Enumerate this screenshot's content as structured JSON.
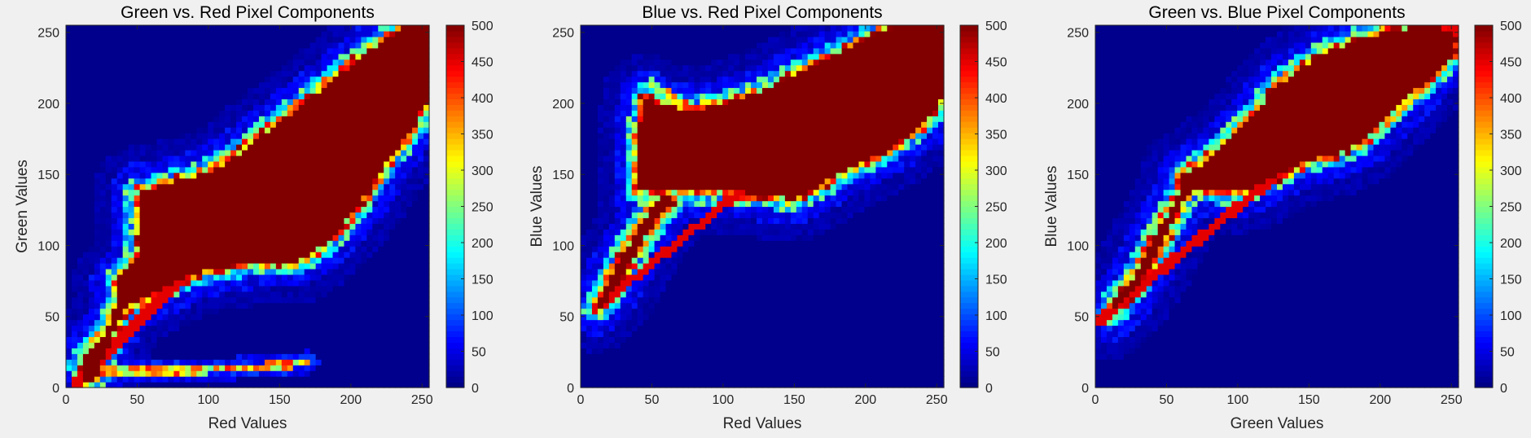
{
  "figure": {
    "colormap": "jet",
    "background": "#f0f0f0"
  },
  "chart_data": [
    {
      "type": "heatmap",
      "title": "Green vs. Red Pixel Components",
      "xlabel": "Red Values",
      "ylabel": "Green Values",
      "xlim": [
        0,
        255
      ],
      "ylim": [
        0,
        255
      ],
      "xticks": [
        0,
        50,
        100,
        150,
        200,
        250
      ],
      "yticks": [
        0,
        50,
        100,
        150,
        200,
        250
      ],
      "clim": [
        0,
        500
      ],
      "colorbar_ticks": [
        0,
        50,
        100,
        150,
        200,
        250,
        300,
        350,
        400,
        450,
        500
      ],
      "bins": 64,
      "saturated_region_polygon": [
        [
          35,
          75
        ],
        [
          45,
          85
        ],
        [
          50,
          90
        ],
        [
          50,
          140
        ],
        [
          60,
          140
        ],
        [
          75,
          145
        ],
        [
          95,
          150
        ],
        [
          115,
          160
        ],
        [
          140,
          180
        ],
        [
          160,
          195
        ],
        [
          185,
          215
        ],
        [
          210,
          235
        ],
        [
          225,
          245
        ],
        [
          240,
          255
        ],
        [
          255,
          255
        ],
        [
          255,
          210
        ],
        [
          245,
          185
        ],
        [
          230,
          165
        ],
        [
          210,
          135
        ],
        [
          195,
          115
        ],
        [
          180,
          100
        ],
        [
          165,
          90
        ],
        [
          150,
          88
        ],
        [
          130,
          88
        ],
        [
          110,
          85
        ],
        [
          90,
          80
        ],
        [
          70,
          70
        ],
        [
          50,
          60
        ],
        [
          40,
          55
        ]
      ],
      "saturated_band_polygon": [
        [
          15,
          0
        ],
        [
          10,
          15
        ],
        [
          15,
          25
        ],
        [
          28,
          40
        ],
        [
          36,
          60
        ],
        [
          38,
          75
        ],
        [
          45,
          80
        ],
        [
          40,
          55
        ],
        [
          30,
          30
        ],
        [
          22,
          10
        ]
      ],
      "diagonal_ridge": {
        "x": [
          5,
          255
        ],
        "y": [
          0,
          255
        ],
        "width": 7
      },
      "bright_curve": {
        "x": [
          20,
          60,
          100,
          140,
          170
        ],
        "y": [
          12,
          12,
          13,
          15,
          18
        ],
        "level": 330
      },
      "halo_level": 60,
      "floor_level": 6
    },
    {
      "type": "heatmap",
      "title": "Blue vs. Red Pixel Components",
      "xlabel": "Red Values",
      "ylabel": "Blue Values",
      "xlim": [
        0,
        255
      ],
      "ylim": [
        0,
        255
      ],
      "xticks": [
        0,
        50,
        100,
        150,
        200,
        250
      ],
      "yticks": [
        0,
        50,
        100,
        150,
        200,
        250
      ],
      "clim": [
        0,
        500
      ],
      "colorbar_ticks": [
        0,
        50,
        100,
        150,
        200,
        250,
        300,
        350,
        400,
        450,
        500
      ],
      "bins": 64,
      "saturated_region_polygon": [
        [
          40,
          140
        ],
        [
          40,
          175
        ],
        [
          45,
          205
        ],
        [
          55,
          200
        ],
        [
          75,
          195
        ],
        [
          100,
          200
        ],
        [
          130,
          210
        ],
        [
          160,
          225
        ],
        [
          185,
          238
        ],
        [
          205,
          248
        ],
        [
          225,
          255
        ],
        [
          255,
          255
        ],
        [
          255,
          205
        ],
        [
          240,
          185
        ],
        [
          220,
          170
        ],
        [
          200,
          160
        ],
        [
          180,
          150
        ],
        [
          165,
          140
        ],
        [
          150,
          133
        ],
        [
          130,
          135
        ],
        [
          110,
          138
        ],
        [
          85,
          138
        ],
        [
          60,
          138
        ]
      ],
      "saturated_band_polygon": [
        [
          10,
          55
        ],
        [
          15,
          58
        ],
        [
          25,
          70
        ],
        [
          35,
          88
        ],
        [
          45,
          105
        ],
        [
          55,
          120
        ],
        [
          65,
          132
        ],
        [
          60,
          138
        ],
        [
          50,
          128
        ],
        [
          40,
          112
        ],
        [
          30,
          95
        ],
        [
          20,
          78
        ],
        [
          15,
          65
        ]
      ],
      "diagonal_ridge": {
        "x": [
          10,
          255
        ],
        "y": [
          55,
          255
        ],
        "width": 6
      },
      "bright_curve": {
        "x": [
          50,
          70,
          90,
          110
        ],
        "y": [
          215,
          200,
          195,
          190
        ],
        "level": 330
      },
      "halo_level": 60,
      "floor_level": 6
    },
    {
      "type": "heatmap",
      "title": "Green vs. Blue Pixel Components",
      "xlabel": "Green Values",
      "ylabel": "Blue Values",
      "xlim": [
        0,
        255
      ],
      "ylim": [
        0,
        255
      ],
      "xticks": [
        0,
        50,
        100,
        150,
        200,
        250
      ],
      "yticks": [
        0,
        50,
        100,
        150,
        200,
        250
      ],
      "clim": [
        0,
        500
      ],
      "colorbar_ticks": [
        0,
        50,
        100,
        150,
        200,
        250,
        300,
        350,
        400,
        450,
        500
      ],
      "bins": 64,
      "saturated_region_polygon": [
        [
          60,
          140
        ],
        [
          60,
          150
        ],
        [
          75,
          158
        ],
        [
          95,
          175
        ],
        [
          110,
          190
        ],
        [
          125,
          210
        ],
        [
          140,
          222
        ],
        [
          160,
          235
        ],
        [
          185,
          245
        ],
        [
          210,
          252
        ],
        [
          240,
          255
        ],
        [
          255,
          248
        ],
        [
          250,
          232
        ],
        [
          240,
          222
        ],
        [
          220,
          205
        ],
        [
          205,
          190
        ],
        [
          190,
          175
        ],
        [
          170,
          165
        ],
        [
          150,
          160
        ],
        [
          130,
          150
        ],
        [
          110,
          140
        ],
        [
          90,
          138
        ]
      ],
      "saturated_band_polygon": [
        [
          10,
          50
        ],
        [
          18,
          58
        ],
        [
          28,
          70
        ],
        [
          40,
          88
        ],
        [
          52,
          110
        ],
        [
          60,
          130
        ],
        [
          68,
          140
        ],
        [
          60,
          140
        ],
        [
          48,
          118
        ],
        [
          36,
          95
        ],
        [
          22,
          70
        ],
        [
          12,
          60
        ]
      ],
      "diagonal_ridge": {
        "x": [
          0,
          255
        ],
        "y": [
          45,
          255
        ],
        "width": 7
      },
      "bright_curve": {
        "x": [
          130,
          160,
          190,
          220
        ],
        "y": [
          200,
          225,
          240,
          248
        ],
        "level": 250
      },
      "halo_level": 60,
      "floor_level": 6
    }
  ]
}
